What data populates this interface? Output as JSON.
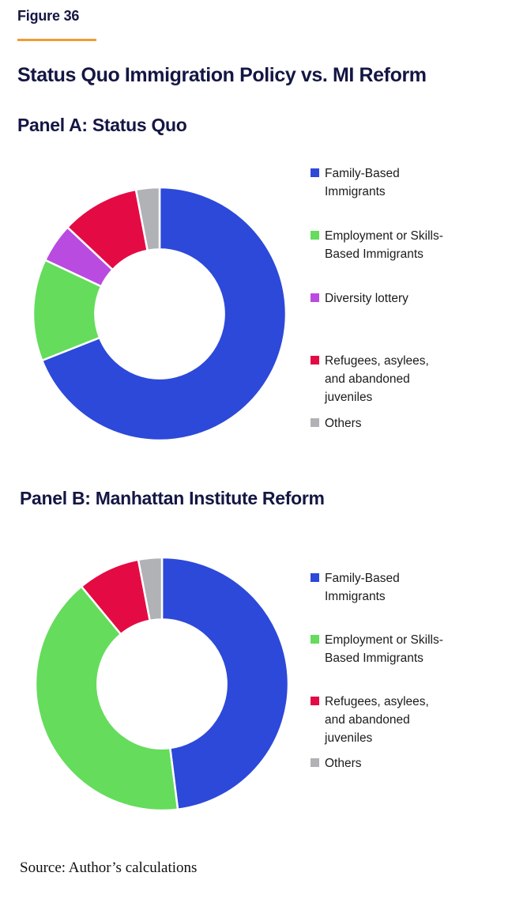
{
  "figure": {
    "label": "Figure 36",
    "title": "Status Quo Immigration Policy vs. MI Reform",
    "source": "Source: Author’s calculations"
  },
  "style_colors": {
    "accent_rule": "#F09C33",
    "heading_ink": "#141643",
    "legend_text": "#1b1b1b"
  },
  "chart_data": [
    {
      "type": "pie",
      "variant": "donut",
      "title": "Panel A: Status Quo",
      "categories": [
        "Family-Based Immigrants",
        "Employment or Skills-Based Immigrants",
        "Diversity lottery",
        "Refugees, asylees, and abandoned juveniles",
        "Others"
      ],
      "values": [
        69,
        13,
        5,
        10,
        3
      ],
      "unit": "percent",
      "colors": [
        "#2D49D9",
        "#65DC5C",
        "#B94BE0",
        "#E40B44",
        "#B1B2B6"
      ],
      "start_angle_deg": 0,
      "direction": "clockwise",
      "inner_radius_ratio": 0.51,
      "slice_gap_color": "#ffffff",
      "legend_position": "right"
    },
    {
      "type": "pie",
      "variant": "donut",
      "title": "Panel B: Manhattan Institute Reform",
      "categories": [
        "Family-Based Immigrants",
        "Employment or Skills-Based Immigrants",
        "Refugees, asylees, and abandoned juveniles",
        "Others"
      ],
      "values": [
        48,
        41,
        8,
        3
      ],
      "unit": "percent",
      "colors": [
        "#2D49D9",
        "#65DC5C",
        "#E40B44",
        "#B1B2B6"
      ],
      "start_angle_deg": 0,
      "direction": "clockwise",
      "inner_radius_ratio": 0.51,
      "slice_gap_color": "#ffffff",
      "legend_position": "right"
    }
  ]
}
